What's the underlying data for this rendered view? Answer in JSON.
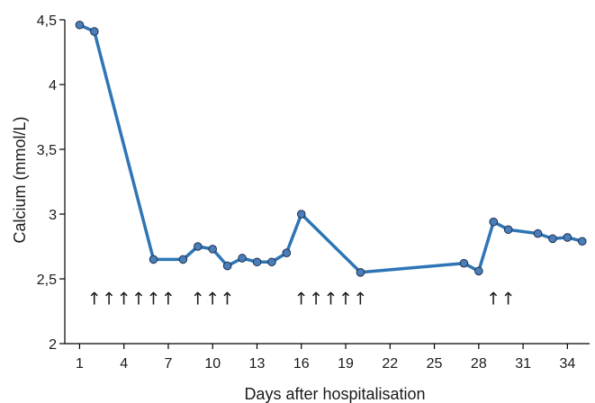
{
  "chart_data": {
    "type": "line",
    "title": "",
    "xlabel": "Days after hospitalisation",
    "ylabel": "Calcium (mmol/L)",
    "xlim": [
      0,
      35.5
    ],
    "ylim": [
      2,
      4.5
    ],
    "x_ticks": [
      1,
      4,
      7,
      10,
      13,
      16,
      19,
      22,
      25,
      28,
      31,
      34
    ],
    "x_tick_labels": [
      "1",
      "4",
      "7",
      "10",
      "13",
      "16",
      "19",
      "22",
      "25",
      "28",
      "31",
      "34"
    ],
    "y_ticks": [
      2,
      2.5,
      3,
      3.5,
      4,
      4.5
    ],
    "y_tick_labels": [
      "2",
      "2,5",
      "3",
      "3,5",
      "4",
      "4,5"
    ],
    "grid": false,
    "legend": "none",
    "series": [
      {
        "color": "#2e75b6",
        "marker_color": "#4a7ebb",
        "x": [
          1,
          2,
          6,
          8,
          9,
          10,
          11,
          12,
          13,
          14,
          15,
          16,
          20,
          27,
          28,
          29,
          30,
          32,
          33,
          34,
          35
        ],
        "y": [
          4.46,
          4.41,
          2.65,
          2.65,
          2.75,
          2.73,
          2.6,
          2.66,
          2.63,
          2.63,
          2.7,
          3.0,
          2.55,
          2.62,
          2.56,
          2.94,
          2.88,
          2.85,
          2.81,
          2.82,
          2.79
        ]
      }
    ],
    "annotations": {
      "symbol": "↑",
      "y": 2.35,
      "x": [
        2,
        3,
        4,
        5,
        6,
        7,
        9,
        10,
        11,
        16,
        17,
        18,
        19,
        20,
        29,
        30
      ]
    }
  }
}
